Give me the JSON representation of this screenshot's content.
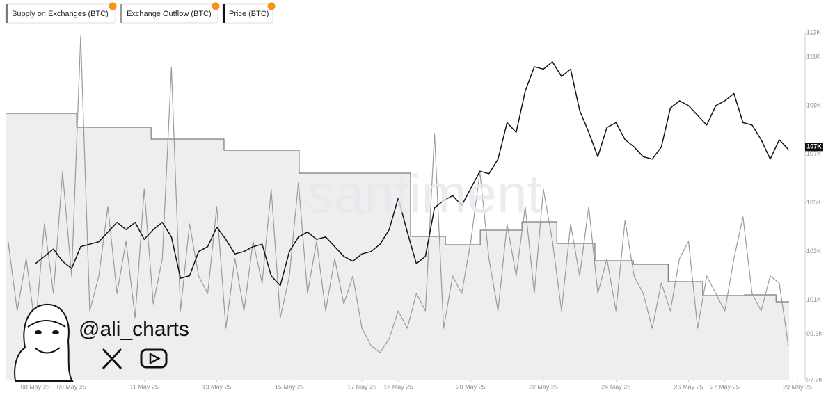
{
  "chart_data": {
    "type": "line",
    "watermark": "santiment",
    "credit": "@ali_charts",
    "xlim": [
      7.18,
      29
    ],
    "xticks": [
      {
        "value": 8,
        "label": "08 May 25"
      },
      {
        "value": 9,
        "label": "09 May 25"
      },
      {
        "value": 11,
        "label": "11 May 25"
      },
      {
        "value": 13,
        "label": "13 May 25"
      },
      {
        "value": 15,
        "label": "15 May 25"
      },
      {
        "value": 17,
        "label": "17 May 25"
      },
      {
        "value": 18,
        "label": "18 May 25"
      },
      {
        "value": 20,
        "label": "20 May 25"
      },
      {
        "value": 22,
        "label": "22 May 25"
      },
      {
        "value": 24,
        "label": "24 May 25"
      },
      {
        "value": 26,
        "label": "26 May 25"
      },
      {
        "value": 27,
        "label": "27 May 25"
      },
      {
        "value": 29,
        "label": "29 May 25"
      }
    ],
    "ylim": [
      97700,
      112000
    ],
    "yticks": [
      {
        "value": 112000,
        "label": "112K"
      },
      {
        "value": 111000,
        "label": "111K"
      },
      {
        "value": 109000,
        "label": "109K"
      },
      {
        "value": 107000,
        "label": "107K"
      },
      {
        "value": 105000,
        "label": "105K"
      },
      {
        "value": 103000,
        "label": "103K"
      },
      {
        "value": 101000,
        "label": "101K"
      },
      {
        "value": 99600,
        "label": "99.6K"
      },
      {
        "value": 97700,
        "label": "97.7K"
      }
    ],
    "y3lim": [
      0,
      100
    ],
    "annotations": [
      {
        "value": 107300,
        "label": "107K"
      }
    ],
    "x": [
      7.25,
      7.5,
      7.75,
      8,
      8.25,
      8.5,
      8.75,
      9,
      9.25,
      9.5,
      9.75,
      10,
      10.25,
      10.5,
      10.75,
      11,
      11.25,
      11.5,
      11.75,
      12,
      12.25,
      12.5,
      12.75,
      13,
      13.25,
      13.5,
      13.75,
      14,
      14.25,
      14.5,
      14.75,
      15,
      15.25,
      15.5,
      15.75,
      16,
      16.25,
      16.5,
      16.75,
      17,
      17.25,
      17.5,
      17.75,
      18,
      18.25,
      18.5,
      18.75,
      19,
      19.25,
      19.5,
      19.75,
      20,
      20.25,
      20.5,
      20.75,
      21,
      21.25,
      21.5,
      21.75,
      22,
      22.25,
      22.5,
      22.75,
      23,
      23.25,
      23.5,
      23.75,
      24,
      24.25,
      24.5,
      24.75,
      25,
      25.25,
      25.5,
      25.75,
      26,
      26.25,
      26.5,
      26.75,
      27,
      27.25,
      27.5,
      27.75,
      28,
      28.25,
      28.5,
      28.75
    ],
    "series": [
      {
        "name": "Supply on Exchanges (BTC)",
        "color": "#7a7a7a",
        "fill": "#eeeeee",
        "axis": "y3",
        "step": true,
        "x": [
          7.18,
          9.14,
          11.19,
          13.2,
          15.27,
          18.34,
          19.3,
          20.26,
          21.41,
          22.37,
          23.42,
          24.48,
          25.44,
          26.39,
          27.54,
          28.41,
          28.77
        ],
        "values": [
          76.8,
          72.8,
          69.4,
          66.2,
          59.6,
          41.4,
          39,
          43.2,
          45.6,
          39.4,
          34.4,
          33.4,
          28.4,
          24.4,
          24.6,
          22.6,
          22.6
        ]
      },
      {
        "name": "Exchange Outflow (BTC)",
        "color": "#9a9a9a",
        "axis": "y3",
        "values": [
          40,
          20,
          35,
          15,
          45,
          25,
          60,
          30,
          99,
          20,
          30,
          50,
          25,
          40,
          18,
          55,
          22,
          35,
          90,
          20,
          45,
          30,
          25,
          50,
          15,
          35,
          20,
          40,
          28,
          55,
          18,
          30,
          57,
          25,
          40,
          20,
          35,
          22,
          30,
          15,
          10,
          8,
          12,
          20,
          15,
          25,
          20,
          71,
          15,
          30,
          25,
          40,
          60,
          35,
          20,
          45,
          30,
          50,
          25,
          55,
          40,
          20,
          45,
          30,
          50,
          25,
          35,
          20,
          46,
          30,
          25,
          15,
          28,
          20,
          35,
          40,
          15,
          30,
          25,
          20,
          35,
          47,
          25,
          20,
          30,
          28,
          10
        ]
      },
      {
        "name": "Price (BTC)",
        "color": "#111111",
        "axis": "y",
        "values": [
          null,
          null,
          null,
          102500,
          102800,
          103100,
          102600,
          102300,
          103200,
          103300,
          103400,
          103800,
          104200,
          103900,
          104200,
          103500,
          103900,
          104200,
          103600,
          101900,
          102000,
          103000,
          103200,
          104000,
          103500,
          102900,
          103000,
          103200,
          103300,
          102000,
          101600,
          103000,
          103600,
          103800,
          103500,
          103600,
          103200,
          102800,
          102600,
          102900,
          103000,
          103300,
          103900,
          105200,
          103800,
          102500,
          102800,
          104800,
          105100,
          105300,
          104900,
          105600,
          106300,
          106200,
          106800,
          108300,
          107900,
          109600,
          110600,
          110500,
          110800,
          110200,
          110500,
          108800,
          107900,
          106900,
          108100,
          108300,
          107600,
          107300,
          106900,
          106800,
          107300,
          108900,
          109200,
          109000,
          108600,
          108200,
          109000,
          109200,
          109500,
          108300,
          108200,
          107600,
          106800,
          107600,
          107200
        ]
      }
    ]
  }
}
